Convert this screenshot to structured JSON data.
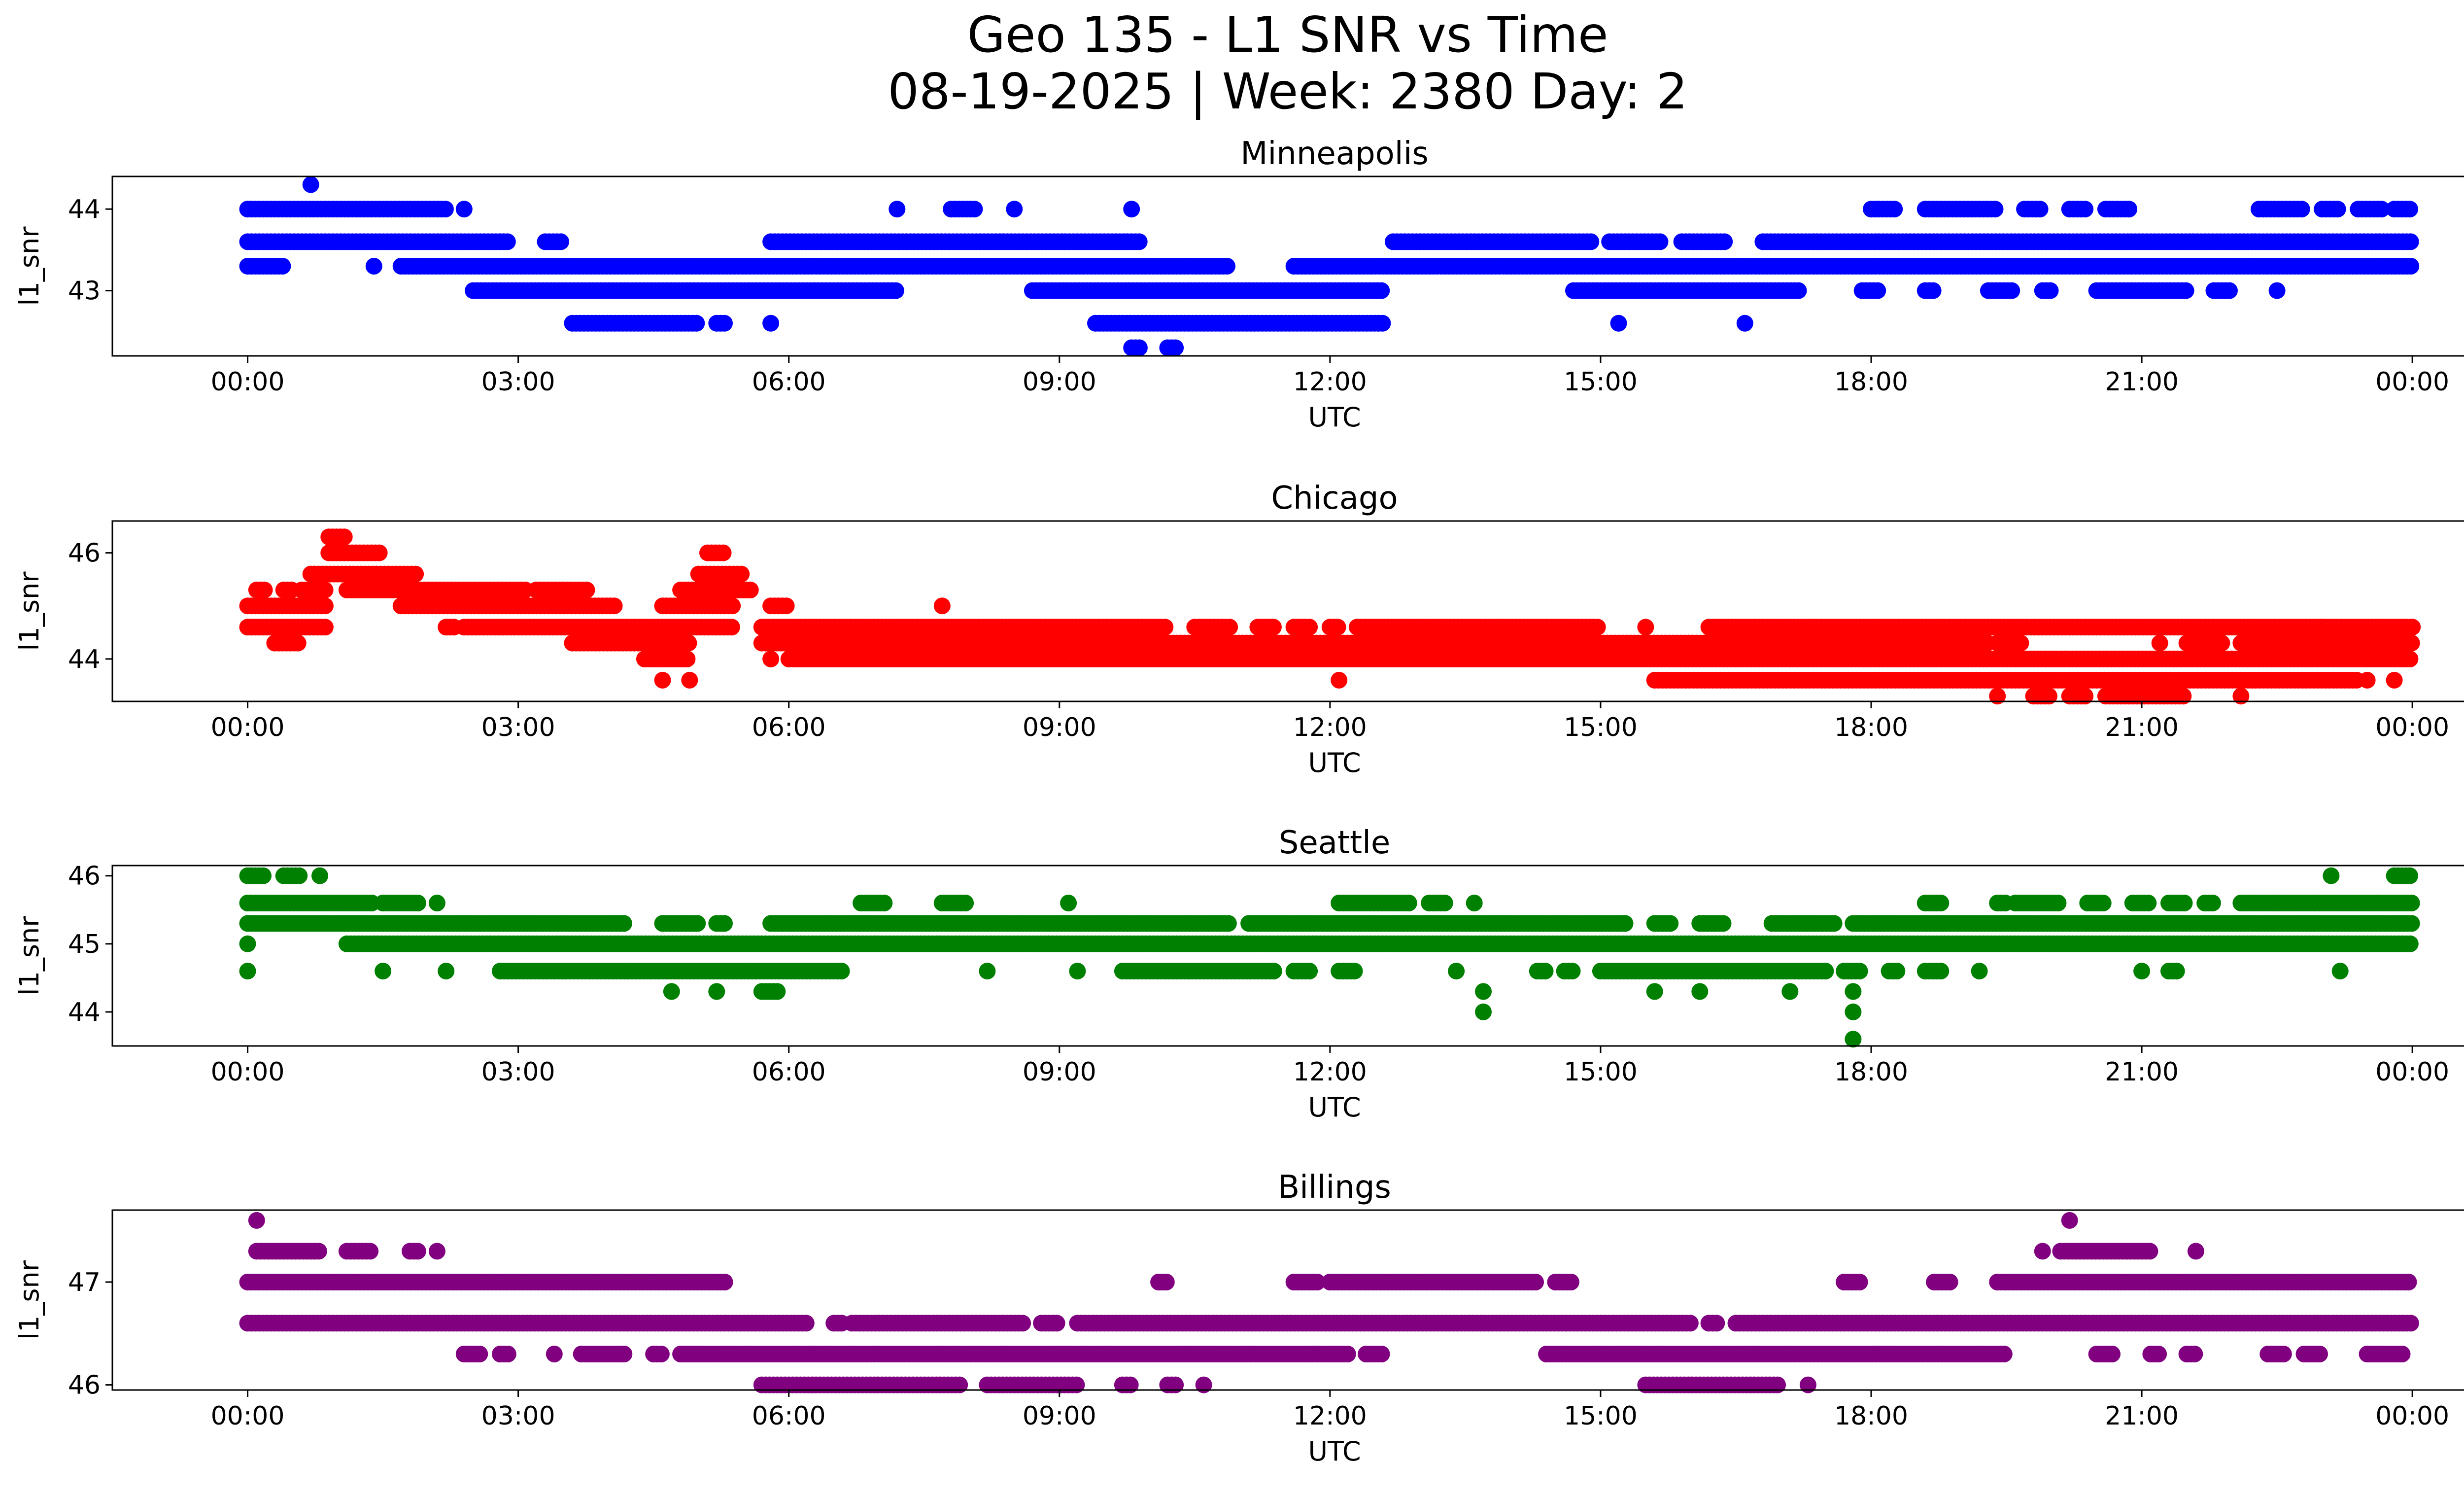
{
  "title_line1": "Geo 135 - L1 SNR vs Time",
  "title_line2": "08-19-2025 | Week: 2380 Day: 2",
  "chart_data": [
    {
      "type": "scatter",
      "title": "Minneapolis",
      "xlabel": "UTC",
      "ylabel": "l1_snr",
      "color": "#0000ff",
      "xlim": [
        -1.5,
        25.6
      ],
      "ylim": [
        42.2,
        44.4
      ],
      "xticks": [
        0,
        3,
        6,
        9,
        12,
        15,
        18,
        21,
        24
      ],
      "xtick_labels": [
        "00:00",
        "03:00",
        "06:00",
        "09:00",
        "12:00",
        "15:00",
        "18:00",
        "21:00",
        "00:00"
      ],
      "yticks": [
        43,
        44
      ],
      "ytick_labels": [
        "43",
        "44"
      ],
      "bands": [
        {
          "y": 44.0,
          "x": [
            [
              0,
              2.2
            ],
            [
              2.4,
              2.4
            ],
            [
              7.2,
              7.2
            ],
            [
              7.8,
              8.1
            ],
            [
              8.5,
              8.5
            ],
            [
              9.8,
              9.8
            ],
            [
              18.0,
              18.3
            ],
            [
              18.6,
              19.4
            ],
            [
              19.7,
              19.9
            ],
            [
              20.2,
              20.4
            ],
            [
              20.6,
              20.9
            ],
            [
              22.3,
              22.8
            ],
            [
              23.0,
              23.2
            ],
            [
              23.4,
              23.7
            ],
            [
              23.8,
              24.0
            ]
          ]
        },
        {
          "y": 43.6,
          "x": [
            [
              0,
              2.9
            ],
            [
              3.3,
              3.5
            ],
            [
              5.8,
              9.9
            ],
            [
              12.7,
              14.9
            ],
            [
              15.1,
              15.7
            ],
            [
              15.9,
              16.4
            ],
            [
              16.8,
              24.0
            ]
          ]
        },
        {
          "y": 43.3,
          "x": [
            [
              0,
              0.4
            ],
            [
              1.4,
              1.4
            ],
            [
              1.7,
              10.9
            ],
            [
              11.6,
              24.0
            ]
          ]
        },
        {
          "y": 43.0,
          "x": [
            [
              2.5,
              7.2
            ],
            [
              8.7,
              12.6
            ],
            [
              14.7,
              17.2
            ],
            [
              17.9,
              18.1
            ],
            [
              18.6,
              18.7
            ],
            [
              19.3,
              19.6
            ],
            [
              19.9,
              20.0
            ],
            [
              20.5,
              21.5
            ],
            [
              21.8,
              22.0
            ],
            [
              22.5,
              22.5
            ]
          ]
        },
        {
          "y": 42.6,
          "x": [
            [
              3.6,
              5.0
            ],
            [
              5.2,
              5.3
            ],
            [
              5.8,
              5.8
            ],
            [
              9.4,
              12.6
            ],
            [
              15.2,
              15.2
            ],
            [
              16.6,
              16.6
            ]
          ]
        },
        {
          "y": 42.3,
          "x": [
            [
              9.8,
              9.9
            ],
            [
              10.2,
              10.3
            ]
          ]
        }
      ],
      "extra_points": [
        [
          0.7,
          44.3
        ]
      ]
    },
    {
      "type": "scatter",
      "title": "Chicago",
      "xlabel": "UTC",
      "ylabel": "l1_snr",
      "color": "#ff0000",
      "xlim": [
        -1.5,
        25.6
      ],
      "ylim": [
        43.2,
        46.6
      ],
      "xticks": [
        0,
        3,
        6,
        9,
        12,
        15,
        18,
        21,
        24
      ],
      "xtick_labels": [
        "00:00",
        "03:00",
        "06:00",
        "09:00",
        "12:00",
        "15:00",
        "18:00",
        "21:00",
        "00:00"
      ],
      "yticks": [
        44,
        46
      ],
      "ytick_labels": [
        "44",
        "46"
      ],
      "bands": [
        {
          "y": 46.3,
          "x": [
            [
              0.9,
              1.1
            ]
          ]
        },
        {
          "y": 46.0,
          "x": [
            [
              0.9,
              1.5
            ],
            [
              5.1,
              5.3
            ]
          ]
        },
        {
          "y": 45.6,
          "x": [
            [
              0.7,
              1.9
            ],
            [
              5.0,
              5.5
            ]
          ]
        },
        {
          "y": 45.3,
          "x": [
            [
              0.1,
              0.2
            ],
            [
              0.4,
              0.5
            ],
            [
              0.6,
              0.9
            ],
            [
              1.1,
              3.1
            ],
            [
              3.2,
              3.8
            ],
            [
              4.8,
              5.6
            ]
          ]
        },
        {
          "y": 45.0,
          "x": [
            [
              0,
              0.9
            ],
            [
              1.7,
              4.1
            ],
            [
              4.6,
              5.4
            ],
            [
              5.8,
              6.0
            ]
          ]
        },
        {
          "y": 44.6,
          "x": [
            [
              0,
              0.9
            ],
            [
              2.2,
              2.3
            ],
            [
              2.4,
              5.4
            ],
            [
              5.7,
              10.2
            ],
            [
              10.5,
              10.9
            ],
            [
              11.2,
              11.4
            ],
            [
              11.6,
              11.8
            ],
            [
              12.0,
              12.1
            ],
            [
              12.3,
              15.0
            ],
            [
              15.5,
              15.5
            ],
            [
              16.2,
              24.0
            ]
          ]
        },
        {
          "y": 44.3,
          "x": [
            [
              0.3,
              0.6
            ],
            [
              3.6,
              4.9
            ],
            [
              5.7,
              19.3
            ],
            [
              19.4,
              19.7
            ],
            [
              21.2,
              21.2
            ],
            [
              21.5,
              21.9
            ],
            [
              22.1,
              24.0
            ]
          ]
        },
        {
          "y": 44.0,
          "x": [
            [
              4.4,
              4.9
            ],
            [
              5.8,
              5.8
            ],
            [
              6.0,
              24.0
            ]
          ]
        },
        {
          "y": 43.6,
          "x": [
            [
              4.6,
              4.6
            ],
            [
              4.9,
              4.9
            ],
            [
              12.1,
              12.1
            ],
            [
              15.6,
              23.4
            ],
            [
              23.5,
              23.5
            ],
            [
              23.8,
              23.8
            ]
          ]
        },
        {
          "y": 43.3,
          "x": [
            [
              19.4,
              19.4
            ],
            [
              19.8,
              20.0
            ],
            [
              20.2,
              20.4
            ],
            [
              20.6,
              21.5
            ],
            [
              22.1,
              22.1
            ]
          ]
        }
      ],
      "extra_points": [
        [
          7.7,
          45.0
        ],
        [
          23.0,
          44.6
        ],
        [
          24.0,
          44.6
        ]
      ]
    },
    {
      "type": "scatter",
      "title": "Seattle",
      "xlabel": "UTC",
      "ylabel": "l1_snr",
      "color": "#008000",
      "xlim": [
        -1.5,
        25.6
      ],
      "ylim": [
        43.5,
        46.15
      ],
      "xticks": [
        0,
        3,
        6,
        9,
        12,
        15,
        18,
        21,
        24
      ],
      "xtick_labels": [
        "00:00",
        "03:00",
        "06:00",
        "09:00",
        "12:00",
        "15:00",
        "18:00",
        "21:00",
        "00:00"
      ],
      "yticks": [
        44,
        45,
        46
      ],
      "ytick_labels": [
        "44",
        "45",
        "46"
      ],
      "bands": [
        {
          "y": 46.0,
          "x": [
            [
              0,
              0.2
            ],
            [
              0.4,
              0.6
            ],
            [
              0.8,
              0.8
            ],
            [
              23.1,
              23.1
            ],
            [
              23.8,
              24.0
            ]
          ]
        },
        {
          "y": 45.6,
          "x": [
            [
              0,
              1.4
            ],
            [
              1.5,
              1.9
            ],
            [
              2.1,
              2.1
            ],
            [
              6.8,
              7.1
            ],
            [
              7.7,
              8.0
            ],
            [
              9.1,
              9.1
            ],
            [
              12.1,
              12.9
            ],
            [
              13.1,
              13.3
            ],
            [
              13.6,
              13.6
            ],
            [
              18.6,
              18.8
            ],
            [
              19.4,
              19.5
            ],
            [
              19.6,
              20.1
            ],
            [
              20.4,
              20.6
            ],
            [
              20.9,
              21.1
            ],
            [
              21.3,
              21.5
            ],
            [
              21.7,
              21.8
            ],
            [
              22.1,
              24.0
            ]
          ]
        },
        {
          "y": 45.3,
          "x": [
            [
              0,
              4.2
            ],
            [
              4.6,
              5.0
            ],
            [
              5.2,
              5.3
            ],
            [
              5.8,
              10.9
            ],
            [
              11.1,
              15.3
            ],
            [
              15.6,
              15.8
            ],
            [
              16.1,
              16.4
            ],
            [
              16.9,
              17.6
            ],
            [
              17.8,
              24.0
            ]
          ]
        },
        {
          "y": 45.0,
          "x": [
            [
              0,
              0
            ],
            [
              1.1,
              24.0
            ]
          ]
        },
        {
          "y": 44.6,
          "x": [
            [
              0,
              0
            ],
            [
              1.5,
              1.5
            ],
            [
              2.2,
              2.2
            ],
            [
              2.8,
              6.6
            ],
            [
              8.2,
              8.2
            ],
            [
              9.2,
              9.2
            ],
            [
              9.7,
              11.4
            ],
            [
              11.6,
              11.8
            ],
            [
              12.1,
              12.3
            ],
            [
              13.4,
              13.4
            ],
            [
              14.3,
              14.4
            ],
            [
              14.6,
              14.7
            ],
            [
              15.0,
              17.5
            ],
            [
              17.7,
              17.9
            ],
            [
              18.2,
              18.3
            ],
            [
              18.6,
              18.8
            ],
            [
              19.2,
              19.2
            ],
            [
              21.0,
              21.0
            ],
            [
              21.3,
              21.4
            ],
            [
              23.2,
              23.2
            ]
          ]
        },
        {
          "y": 44.3,
          "x": [
            [
              4.7,
              4.7
            ],
            [
              5.2,
              5.2
            ],
            [
              5.7,
              5.9
            ],
            [
              13.7,
              13.7
            ],
            [
              15.6,
              15.6
            ],
            [
              16.1,
              16.1
            ],
            [
              17.1,
              17.1
            ],
            [
              17.8,
              17.8
            ]
          ]
        },
        {
          "y": 44.0,
          "x": [
            [
              13.7,
              13.7
            ],
            [
              17.8,
              17.8
            ]
          ]
        },
        {
          "y": 43.6,
          "x": [
            [
              17.8,
              17.8
            ]
          ]
        }
      ],
      "extra_points": []
    },
    {
      "type": "scatter",
      "title": "Billings",
      "xlabel": "UTC",
      "ylabel": "l1_snr",
      "color": "#800080",
      "xlim": [
        -1.5,
        25.6
      ],
      "ylim": [
        45.95,
        47.7
      ],
      "xticks": [
        0,
        3,
        6,
        9,
        12,
        15,
        18,
        21,
        24
      ],
      "xtick_labels": [
        "00:00",
        "03:00",
        "06:00",
        "09:00",
        "12:00",
        "15:00",
        "18:00",
        "21:00",
        "00:00"
      ],
      "yticks": [
        46,
        47
      ],
      "ytick_labels": [
        "46",
        "47"
      ],
      "bands": [
        {
          "y": 47.6,
          "x": [
            [
              0.1,
              0.1
            ],
            [
              20.2,
              20.2
            ]
          ]
        },
        {
          "y": 47.3,
          "x": [
            [
              0.1,
              0.8
            ],
            [
              1.1,
              1.4
            ],
            [
              1.8,
              1.9
            ],
            [
              2.1,
              2.1
            ],
            [
              19.9,
              19.9
            ],
            [
              20.1,
              21.1
            ],
            [
              21.6,
              21.6
            ]
          ]
        },
        {
          "y": 47.0,
          "x": [
            [
              0,
              5.3
            ],
            [
              10.1,
              10.2
            ],
            [
              11.6,
              11.9
            ],
            [
              12.0,
              14.3
            ],
            [
              14.5,
              14.7
            ],
            [
              17.7,
              17.9
            ],
            [
              18.7,
              18.9
            ],
            [
              19.4,
              24.0
            ]
          ]
        },
        {
          "y": 46.6,
          "x": [
            [
              0,
              6.2
            ],
            [
              6.5,
              6.6
            ],
            [
              6.7,
              8.6
            ],
            [
              8.8,
              9.0
            ],
            [
              9.2,
              16.0
            ],
            [
              16.2,
              16.3
            ],
            [
              16.5,
              24.0
            ]
          ]
        },
        {
          "y": 46.3,
          "x": [
            [
              2.4,
              2.6
            ],
            [
              2.8,
              2.9
            ],
            [
              3.4,
              3.4
            ],
            [
              3.7,
              4.2
            ],
            [
              4.5,
              4.6
            ],
            [
              4.8,
              12.2
            ],
            [
              12.4,
              12.6
            ],
            [
              14.4,
              19.5
            ],
            [
              20.5,
              20.7
            ],
            [
              21.1,
              21.2
            ],
            [
              21.5,
              21.6
            ],
            [
              22.4,
              22.6
            ],
            [
              22.8,
              23.0
            ],
            [
              23.5,
              23.9
            ]
          ]
        },
        {
          "y": 46.0,
          "x": [
            [
              5.7,
              7.9
            ],
            [
              8.2,
              9.2
            ],
            [
              9.7,
              9.8
            ],
            [
              10.2,
              10.3
            ],
            [
              10.6,
              10.6
            ],
            [
              15.5,
              17.0
            ],
            [
              17.3,
              17.3
            ]
          ]
        }
      ],
      "extra_points": []
    }
  ]
}
